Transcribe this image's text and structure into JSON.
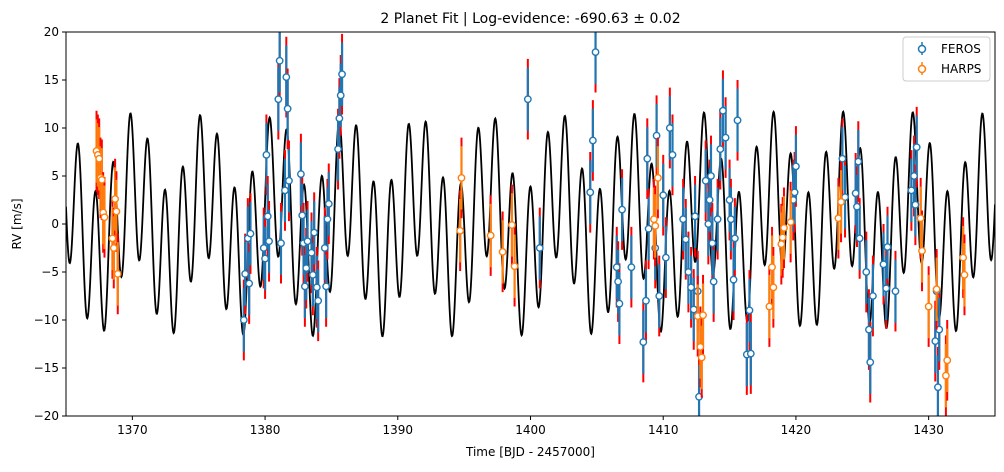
{
  "chart_data": {
    "type": "scatter",
    "title": "2 Planet Fit | Log-evidence: -690.63 ± 0.02",
    "xlabel": "Time [BJD - 2457000]",
    "ylabel": "RV [m/s]",
    "xlim": [
      1365,
      1435
    ],
    "ylim": [
      -20,
      20
    ],
    "x_ticks": [
      1370,
      1380,
      1390,
      1400,
      1410,
      1420,
      1430
    ],
    "y_ticks": [
      -20,
      -15,
      -10,
      -5,
      0,
      5,
      10,
      15,
      20
    ],
    "grid": false,
    "legend_position": "top-right",
    "model_color": "#000000",
    "jitter_color": "#ff0000",
    "series": [
      {
        "name": "FEROS",
        "color": "#1f77b4",
        "points": [
          [
            1378.4,
            -10
          ],
          [
            1378.5,
            -5.2
          ],
          [
            1378.7,
            -1.5
          ],
          [
            1378.8,
            -6.2
          ],
          [
            1378.9,
            -1
          ],
          [
            1379.9,
            -2.5
          ],
          [
            1380.0,
            -3.6
          ],
          [
            1380.1,
            7.2
          ],
          [
            1380.2,
            0.8
          ],
          [
            1380.3,
            -1.8
          ],
          [
            1381.0,
            13
          ],
          [
            1381.1,
            17
          ],
          [
            1381.2,
            -2
          ],
          [
            1381.5,
            3.5
          ],
          [
            1381.6,
            15.3
          ],
          [
            1381.7,
            12
          ],
          [
            1381.8,
            4.5
          ],
          [
            1382.7,
            5.2
          ],
          [
            1382.8,
            0.9
          ],
          [
            1382.9,
            -2
          ],
          [
            1383.0,
            -6.5
          ],
          [
            1383.1,
            -4.6
          ],
          [
            1383.2,
            -1.8
          ],
          [
            1383.5,
            -3
          ],
          [
            1383.6,
            -5.3
          ],
          [
            1383.7,
            -0.9
          ],
          [
            1383.9,
            -6.6
          ],
          [
            1384.0,
            -8
          ],
          [
            1384.5,
            -2.5
          ],
          [
            1384.6,
            -6.5
          ],
          [
            1384.7,
            0.5
          ],
          [
            1384.8,
            2.1
          ],
          [
            1385.5,
            7.8
          ],
          [
            1385.6,
            11
          ],
          [
            1385.7,
            13.4
          ],
          [
            1385.8,
            15.6
          ],
          [
            1399.8,
            13
          ],
          [
            1400.7,
            -2.5
          ],
          [
            1404.5,
            3.3
          ],
          [
            1404.7,
            8.7
          ],
          [
            1404.9,
            17.9
          ],
          [
            1406.5,
            -4.5
          ],
          [
            1406.6,
            -6
          ],
          [
            1406.7,
            -8.3
          ],
          [
            1406.9,
            1.5
          ],
          [
            1407.6,
            -4.5
          ],
          [
            1408.5,
            -12.3
          ],
          [
            1408.7,
            -8
          ],
          [
            1408.8,
            6.8
          ],
          [
            1408.9,
            -0.5
          ],
          [
            1409.4,
            -2.5
          ],
          [
            1409.5,
            9.2
          ],
          [
            1409.7,
            -7.5
          ],
          [
            1410.0,
            3
          ],
          [
            1410.2,
            -3.5
          ],
          [
            1410.5,
            10
          ],
          [
            1410.7,
            7.2
          ],
          [
            1411.5,
            0.5
          ],
          [
            1411.7,
            -1.6
          ],
          [
            1411.9,
            -5
          ],
          [
            1412.1,
            -6.6
          ],
          [
            1412.3,
            -8.9
          ],
          [
            1412.4,
            0.8
          ],
          [
            1412.6,
            -7
          ],
          [
            1412.7,
            -18
          ],
          [
            1413.2,
            4.5
          ],
          [
            1413.4,
            0
          ],
          [
            1413.5,
            2.5
          ],
          [
            1413.6,
            5
          ],
          [
            1413.7,
            -2
          ],
          [
            1413.8,
            -6
          ],
          [
            1414.1,
            0.5
          ],
          [
            1414.3,
            7.8
          ],
          [
            1414.5,
            11.8
          ],
          [
            1414.7,
            9
          ],
          [
            1415.0,
            2.5
          ],
          [
            1415.1,
            0.5
          ],
          [
            1415.3,
            -5.8
          ],
          [
            1415.4,
            -1.5
          ],
          [
            1415.6,
            10.8
          ],
          [
            1416.3,
            -13.6
          ],
          [
            1416.5,
            -9
          ],
          [
            1416.6,
            -13.5
          ],
          [
            1419.8,
            2.5
          ],
          [
            1419.9,
            3.3
          ],
          [
            1420.0,
            6
          ],
          [
            1423.5,
            6.8
          ],
          [
            1423.7,
            2.8
          ],
          [
            1424.5,
            3.2
          ],
          [
            1424.6,
            1.8
          ],
          [
            1424.7,
            6.5
          ],
          [
            1424.8,
            -1.5
          ],
          [
            1425.3,
            -5
          ],
          [
            1425.5,
            -11
          ],
          [
            1425.6,
            -14.4
          ],
          [
            1425.8,
            -7.5
          ],
          [
            1426.6,
            -4.2
          ],
          [
            1426.8,
            -6.7
          ],
          [
            1426.9,
            -2.4
          ],
          [
            1427.5,
            -7
          ],
          [
            1428.7,
            3.5
          ],
          [
            1428.9,
            5
          ],
          [
            1429.0,
            2
          ],
          [
            1429.1,
            8
          ],
          [
            1430.5,
            -12.2
          ],
          [
            1430.6,
            -7
          ],
          [
            1430.7,
            -17
          ],
          [
            1430.8,
            -11
          ]
        ]
      },
      {
        "name": "HARPS",
        "color": "#ff7f0e",
        "points": [
          [
            1367.3,
            7.6
          ],
          [
            1367.4,
            7.2
          ],
          [
            1367.5,
            6.8
          ],
          [
            1367.6,
            4.8
          ],
          [
            1367.7,
            4.6
          ],
          [
            1367.8,
            1.2
          ],
          [
            1367.9,
            0.7
          ],
          [
            1368.5,
            -1.5
          ],
          [
            1368.6,
            -2.5
          ],
          [
            1368.7,
            2.6
          ],
          [
            1368.8,
            1.3
          ],
          [
            1368.9,
            -5.2
          ],
          [
            1394.7,
            -0.7
          ],
          [
            1394.8,
            4.8
          ],
          [
            1397.0,
            -1.2
          ],
          [
            1397.9,
            -2.9
          ],
          [
            1398.6,
            -0.1
          ],
          [
            1398.8,
            -4.4
          ],
          [
            1409.3,
            0.5
          ],
          [
            1409.4,
            -0.2
          ],
          [
            1409.6,
            4.8
          ],
          [
            1412.6,
            -9.6
          ],
          [
            1412.8,
            -12.8
          ],
          [
            1412.9,
            -13.9
          ],
          [
            1413.0,
            -9.5
          ],
          [
            1418.0,
            -8.6
          ],
          [
            1418.2,
            -4.5
          ],
          [
            1418.3,
            -6.6
          ],
          [
            1418.9,
            -2.1
          ],
          [
            1419.0,
            -1.4
          ],
          [
            1419.1,
            -0.4
          ],
          [
            1419.6,
            0.2
          ],
          [
            1423.2,
            0.6
          ],
          [
            1423.4,
            2.3
          ],
          [
            1429.4,
            0.6
          ],
          [
            1429.5,
            -2.8
          ],
          [
            1430.0,
            -8.6
          ],
          [
            1430.6,
            -6.8
          ],
          [
            1431.3,
            -15.8
          ],
          [
            1431.4,
            -14.2
          ],
          [
            1432.6,
            -3.5
          ],
          [
            1432.7,
            -5.3
          ]
        ]
      }
    ]
  }
}
